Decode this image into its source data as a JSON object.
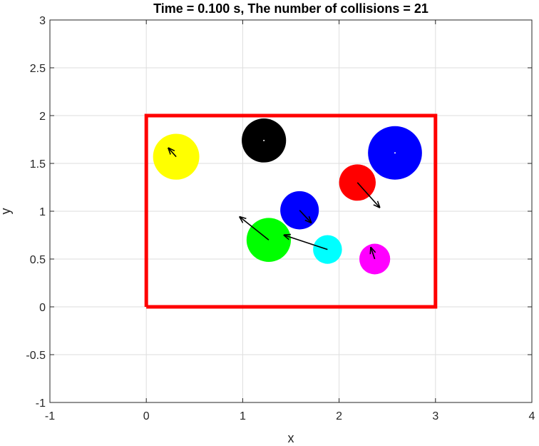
{
  "chart_data": {
    "type": "scatter",
    "title": "Time = 0.100 s, The number of collisions = 21",
    "xlabel": "x",
    "ylabel": "y",
    "xlim": [
      -1,
      4
    ],
    "ylim": [
      -1,
      3
    ],
    "xticks": [
      "-1",
      "0",
      "1",
      "2",
      "3",
      "4"
    ],
    "yticks": [
      "-1",
      "-0.5",
      "0",
      "0.5",
      "1",
      "1.5",
      "2",
      "2.5",
      "3"
    ],
    "grid": true,
    "box": {
      "x": [
        0,
        3,
        3,
        0,
        0
      ],
      "y": [
        0,
        0,
        2,
        2,
        0
      ],
      "color": "#ff0000"
    },
    "balls": [
      {
        "color": "#ffff00",
        "x": 0.31,
        "y": 1.57,
        "r": 0.24,
        "vx": -0.08,
        "vy": 0.09
      },
      {
        "color": "#000000",
        "x": 1.22,
        "y": 1.74,
        "r": 0.23,
        "vx": 0.0,
        "vy": 0.0
      },
      {
        "color": "#0000ff",
        "x": 2.58,
        "y": 1.61,
        "r": 0.28,
        "vx": 0.0,
        "vy": 0.0
      },
      {
        "color": "#ff0000",
        "x": 2.19,
        "y": 1.3,
        "r": 0.19,
        "vx": 0.23,
        "vy": -0.26
      },
      {
        "color": "#0000ff",
        "x": 1.59,
        "y": 1.01,
        "r": 0.2,
        "vx": 0.12,
        "vy": -0.13
      },
      {
        "color": "#00ff00",
        "x": 1.27,
        "y": 0.7,
        "r": 0.23,
        "vx": -0.3,
        "vy": 0.24
      },
      {
        "color": "#00ffff",
        "x": 1.88,
        "y": 0.6,
        "r": 0.15,
        "vx": -0.45,
        "vy": 0.15
      },
      {
        "color": "#ff00ff",
        "x": 2.37,
        "y": 0.5,
        "r": 0.16,
        "vx": -0.04,
        "vy": 0.12
      }
    ]
  }
}
